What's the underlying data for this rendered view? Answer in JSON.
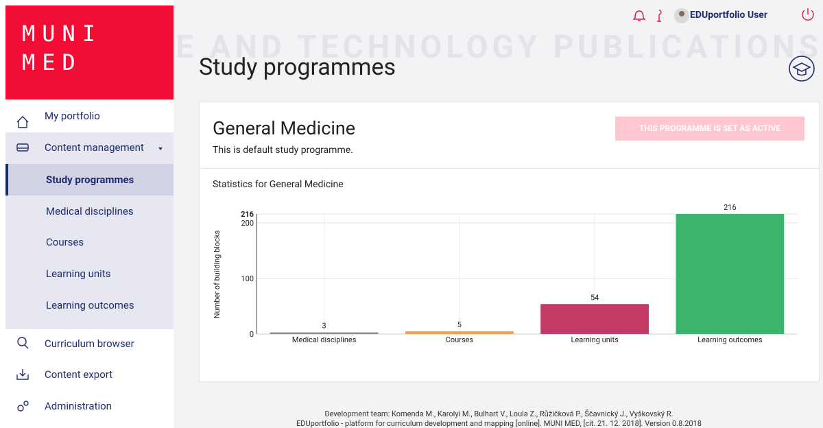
{
  "watermark": "SCIENCE AND TECHNOLOGY PUBLICATIONS",
  "logo": {
    "line1": "MUNI",
    "line2": "MED"
  },
  "topbar": {
    "user": "EDUportfolio User"
  },
  "sidebar": {
    "items": [
      "My portfolio",
      "Content management",
      "Study programmes",
      "Medical disciplines",
      "Courses",
      "Learning units",
      "Learning outcomes",
      "Curriculum browser",
      "Content export",
      "Administration"
    ]
  },
  "page": {
    "title": "Study programmes"
  },
  "programme": {
    "name": "General Medicine",
    "description": "This is default study programme.",
    "status_button": "THIS PROGRAMME IS SET AS ACTIVE"
  },
  "chart": {
    "type": "bar",
    "title": "Statistics for General Medicine",
    "y_label": "Number of building blocks",
    "categories": [
      "Medical disciplines",
      "Courses",
      "Learning units",
      "Learning outcomes"
    ],
    "values": [
      3,
      5,
      54,
      216
    ],
    "colors": [
      "#8c8c8c",
      "#f5a05a",
      "#c23b64",
      "#3cb46e"
    ],
    "ylim": [
      0,
      216
    ],
    "yticks": [
      0,
      100,
      200,
      216
    ],
    "grid": true
  },
  "footer": {
    "line1": "Development team: Komenda M., Karolyi M., Bulhart V., Loula Z., Růžičková P., Ščavnický J., Vyškovský R.",
    "line2": "EDUportfolio - platform for curriculum development and mapping [online]. MUNI MED, [cit. 21. 12. 2018]. Version 0.8.2018"
  }
}
